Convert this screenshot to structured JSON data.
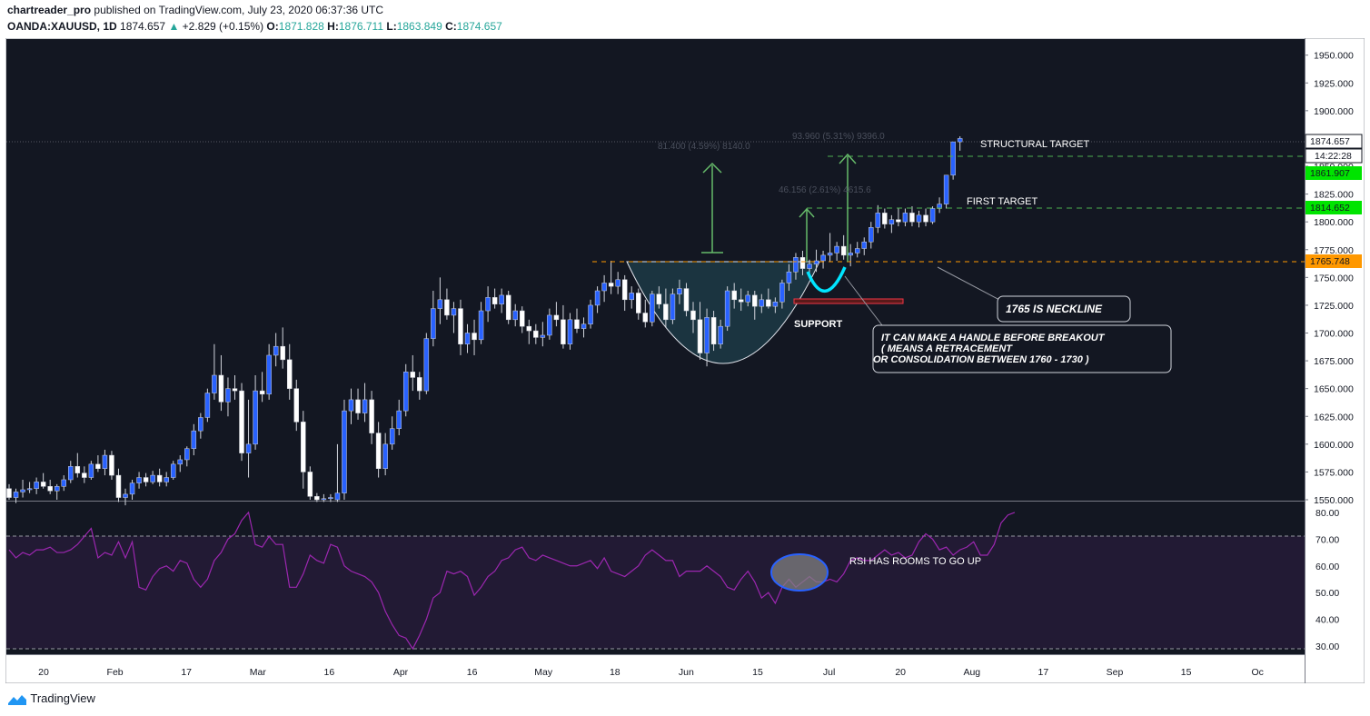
{
  "header": {
    "author": "chartreader_pro",
    "published_text": "published on TradingView.com, July 23, 2020 06:37:36 UTC",
    "symbol": "OANDA:XAUUSD, 1D",
    "last": "1874.657",
    "change_arrow": "▲",
    "change": "+2.829 (+0.15%)",
    "o_label": "O:",
    "o_value": "1871.828",
    "h_label": "H:",
    "h_value": "1876.711",
    "l_label": "L:",
    "l_value": "1863.849",
    "c_label": "C:",
    "c_value": "1874.657"
  },
  "footer": {
    "brand": "TradingView"
  },
  "colors": {
    "background": "#131722",
    "rsi_panel": "#221a34",
    "up_candle": "#2962ff",
    "down_candle": "#ffffff",
    "rsi_line": "#9c27b0",
    "target_line": "#4caf50",
    "neckline": "#ff9800",
    "axis_text": "#131722"
  },
  "chart_data": [
    {
      "type": "candlestick",
      "title": "",
      "y_axis": {
        "ticks": [
          "1950.000",
          "1925.000",
          "1900.000",
          "1875.000",
          "1850.000",
          "1825.000",
          "1800.000",
          "1775.000",
          "1750.000",
          "1725.000",
          "1700.000",
          "1675.000",
          "1650.000",
          "1625.000",
          "1600.000",
          "1575.000",
          "1550.000"
        ],
        "range": [
          1550,
          1962
        ]
      },
      "x_axis": {
        "ticks": [
          "20",
          "Feb",
          "17",
          "Mar",
          "16",
          "Apr",
          "16",
          "May",
          "18",
          "Jun",
          "15",
          "Jul",
          "20",
          "Aug",
          "17",
          "Sep",
          "15",
          "Oc"
        ]
      },
      "price_labels": {
        "last": "1874.657",
        "countdown": "14:22:28",
        "structural": "1861.907",
        "first": "1814.652",
        "neckline": "1765.748"
      },
      "measures": [
        "81.400 (4.59%) 8140.0",
        "93.960 (5.31%) 9396.0",
        "46.156 (2.61%) 4615.6"
      ],
      "annotations": {
        "structural_target": "STRUCTURAL TARGET",
        "first_target": "FIRST TARGET",
        "support": "SUPPORT",
        "neckline_note": "1765 IS NECKLINE",
        "handle_note_1": "IT CAN MAKE A HANDLE BEFORE BREAKOUT",
        "handle_note_2": "( MEANS A RETRACEMENT",
        "handle_note_3": "OR CONSOLIDATION BETWEEN 1760 - 1730 )"
      },
      "levels": {
        "structural": 1861.907,
        "first": 1814.652,
        "neckline": 1765.748,
        "support": 1728
      },
      "series": [
        {
          "o": 1560,
          "h": 1564,
          "l": 1550,
          "c": 1552
        },
        {
          "o": 1552,
          "h": 1560,
          "l": 1547,
          "c": 1557
        },
        {
          "o": 1557,
          "h": 1568,
          "l": 1552,
          "c": 1559
        },
        {
          "o": 1559,
          "h": 1566,
          "l": 1556,
          "c": 1560
        },
        {
          "o": 1560,
          "h": 1570,
          "l": 1555,
          "c": 1566
        },
        {
          "o": 1566,
          "h": 1574,
          "l": 1560,
          "c": 1562
        },
        {
          "o": 1562,
          "h": 1568,
          "l": 1555,
          "c": 1558
        },
        {
          "o": 1558,
          "h": 1564,
          "l": 1550,
          "c": 1562
        },
        {
          "o": 1562,
          "h": 1572,
          "l": 1558,
          "c": 1568
        },
        {
          "o": 1568,
          "h": 1585,
          "l": 1565,
          "c": 1580
        },
        {
          "o": 1580,
          "h": 1592,
          "l": 1570,
          "c": 1574
        },
        {
          "o": 1574,
          "h": 1580,
          "l": 1565,
          "c": 1570
        },
        {
          "o": 1570,
          "h": 1585,
          "l": 1568,
          "c": 1582
        },
        {
          "o": 1582,
          "h": 1590,
          "l": 1575,
          "c": 1578
        },
        {
          "o": 1578,
          "h": 1595,
          "l": 1572,
          "c": 1590
        },
        {
          "o": 1590,
          "h": 1594,
          "l": 1568,
          "c": 1572
        },
        {
          "o": 1572,
          "h": 1578,
          "l": 1548,
          "c": 1552
        },
        {
          "o": 1552,
          "h": 1560,
          "l": 1545,
          "c": 1555
        },
        {
          "o": 1555,
          "h": 1568,
          "l": 1550,
          "c": 1565
        },
        {
          "o": 1565,
          "h": 1575,
          "l": 1560,
          "c": 1570
        },
        {
          "o": 1570,
          "h": 1574,
          "l": 1562,
          "c": 1566
        },
        {
          "o": 1566,
          "h": 1576,
          "l": 1564,
          "c": 1572
        },
        {
          "o": 1572,
          "h": 1578,
          "l": 1562,
          "c": 1566
        },
        {
          "o": 1566,
          "h": 1575,
          "l": 1562,
          "c": 1570
        },
        {
          "o": 1570,
          "h": 1585,
          "l": 1568,
          "c": 1582
        },
        {
          "o": 1582,
          "h": 1590,
          "l": 1575,
          "c": 1586
        },
        {
          "o": 1586,
          "h": 1598,
          "l": 1580,
          "c": 1596
        },
        {
          "o": 1596,
          "h": 1618,
          "l": 1590,
          "c": 1612
        },
        {
          "o": 1612,
          "h": 1628,
          "l": 1605,
          "c": 1624
        },
        {
          "o": 1624,
          "h": 1650,
          "l": 1620,
          "c": 1646
        },
        {
          "o": 1646,
          "h": 1690,
          "l": 1640,
          "c": 1662
        },
        {
          "o": 1662,
          "h": 1680,
          "l": 1630,
          "c": 1638
        },
        {
          "o": 1638,
          "h": 1660,
          "l": 1625,
          "c": 1650
        },
        {
          "o": 1650,
          "h": 1662,
          "l": 1640,
          "c": 1648
        },
        {
          "o": 1648,
          "h": 1655,
          "l": 1585,
          "c": 1592
        },
        {
          "o": 1592,
          "h": 1640,
          "l": 1570,
          "c": 1600
        },
        {
          "o": 1600,
          "h": 1662,
          "l": 1595,
          "c": 1648
        },
        {
          "o": 1648,
          "h": 1665,
          "l": 1638,
          "c": 1645
        },
        {
          "o": 1645,
          "h": 1690,
          "l": 1640,
          "c": 1680
        },
        {
          "o": 1680,
          "h": 1700,
          "l": 1670,
          "c": 1688
        },
        {
          "o": 1688,
          "h": 1705,
          "l": 1668,
          "c": 1676
        },
        {
          "o": 1676,
          "h": 1690,
          "l": 1640,
          "c": 1650
        },
        {
          "o": 1650,
          "h": 1658,
          "l": 1612,
          "c": 1620
        },
        {
          "o": 1620,
          "h": 1630,
          "l": 1560,
          "c": 1575
        },
        {
          "o": 1575,
          "h": 1580,
          "l": 1550,
          "c": 1553
        },
        {
          "o": 1553,
          "h": 1556,
          "l": 1548,
          "c": 1550
        },
        {
          "o": 1550,
          "h": 1555,
          "l": 1548,
          "c": 1551
        },
        {
          "o": 1551,
          "h": 1555,
          "l": 1548,
          "c": 1552
        },
        {
          "o": 1550,
          "h": 1600,
          "l": 1548,
          "c": 1556
        },
        {
          "o": 1556,
          "h": 1640,
          "l": 1550,
          "c": 1630
        },
        {
          "o": 1630,
          "h": 1650,
          "l": 1618,
          "c": 1640
        },
        {
          "o": 1640,
          "h": 1650,
          "l": 1622,
          "c": 1628
        },
        {
          "o": 1628,
          "h": 1655,
          "l": 1620,
          "c": 1640
        },
        {
          "o": 1640,
          "h": 1648,
          "l": 1600,
          "c": 1610
        },
        {
          "o": 1610,
          "h": 1620,
          "l": 1570,
          "c": 1578
        },
        {
          "o": 1578,
          "h": 1610,
          "l": 1572,
          "c": 1600
        },
        {
          "o": 1600,
          "h": 1625,
          "l": 1595,
          "c": 1614
        },
        {
          "o": 1614,
          "h": 1640,
          "l": 1608,
          "c": 1630
        },
        {
          "o": 1630,
          "h": 1672,
          "l": 1625,
          "c": 1665
        },
        {
          "o": 1665,
          "h": 1680,
          "l": 1648,
          "c": 1660
        },
        {
          "o": 1660,
          "h": 1665,
          "l": 1640,
          "c": 1648
        },
        {
          "o": 1648,
          "h": 1700,
          "l": 1645,
          "c": 1695
        },
        {
          "o": 1695,
          "h": 1738,
          "l": 1688,
          "c": 1722
        },
        {
          "o": 1722,
          "h": 1750,
          "l": 1708,
          "c": 1730
        },
        {
          "o": 1730,
          "h": 1740,
          "l": 1712,
          "c": 1716
        },
        {
          "o": 1716,
          "h": 1728,
          "l": 1700,
          "c": 1722
        },
        {
          "o": 1722,
          "h": 1730,
          "l": 1680,
          "c": 1690
        },
        {
          "o": 1690,
          "h": 1708,
          "l": 1682,
          "c": 1700
        },
        {
          "o": 1700,
          "h": 1712,
          "l": 1680,
          "c": 1694
        },
        {
          "o": 1694,
          "h": 1728,
          "l": 1690,
          "c": 1720
        },
        {
          "o": 1720,
          "h": 1742,
          "l": 1710,
          "c": 1732
        },
        {
          "o": 1732,
          "h": 1740,
          "l": 1722,
          "c": 1726
        },
        {
          "o": 1726,
          "h": 1740,
          "l": 1718,
          "c": 1734
        },
        {
          "o": 1734,
          "h": 1738,
          "l": 1708,
          "c": 1712
        },
        {
          "o": 1712,
          "h": 1726,
          "l": 1706,
          "c": 1720
        },
        {
          "o": 1720,
          "h": 1724,
          "l": 1700,
          "c": 1706
        },
        {
          "o": 1706,
          "h": 1712,
          "l": 1690,
          "c": 1702
        },
        {
          "o": 1702,
          "h": 1708,
          "l": 1690,
          "c": 1696
        },
        {
          "o": 1696,
          "h": 1710,
          "l": 1688,
          "c": 1698
        },
        {
          "o": 1698,
          "h": 1722,
          "l": 1694,
          "c": 1716
        },
        {
          "o": 1716,
          "h": 1728,
          "l": 1706,
          "c": 1712
        },
        {
          "o": 1712,
          "h": 1725,
          "l": 1686,
          "c": 1690
        },
        {
          "o": 1690,
          "h": 1718,
          "l": 1685,
          "c": 1712
        },
        {
          "o": 1712,
          "h": 1722,
          "l": 1700,
          "c": 1704
        },
        {
          "o": 1704,
          "h": 1714,
          "l": 1696,
          "c": 1708
        },
        {
          "o": 1708,
          "h": 1730,
          "l": 1704,
          "c": 1725
        },
        {
          "o": 1725,
          "h": 1742,
          "l": 1718,
          "c": 1738
        },
        {
          "o": 1738,
          "h": 1752,
          "l": 1728,
          "c": 1745
        },
        {
          "o": 1745,
          "h": 1765,
          "l": 1735,
          "c": 1742
        },
        {
          "o": 1742,
          "h": 1755,
          "l": 1735,
          "c": 1748
        },
        {
          "o": 1748,
          "h": 1752,
          "l": 1720,
          "c": 1730
        },
        {
          "o": 1730,
          "h": 1742,
          "l": 1722,
          "c": 1736
        },
        {
          "o": 1736,
          "h": 1740,
          "l": 1712,
          "c": 1718
        },
        {
          "o": 1718,
          "h": 1730,
          "l": 1705,
          "c": 1710
        },
        {
          "o": 1710,
          "h": 1738,
          "l": 1706,
          "c": 1735
        },
        {
          "o": 1735,
          "h": 1742,
          "l": 1722,
          "c": 1726
        },
        {
          "o": 1726,
          "h": 1740,
          "l": 1705,
          "c": 1712
        },
        {
          "o": 1712,
          "h": 1740,
          "l": 1708,
          "c": 1735
        },
        {
          "o": 1735,
          "h": 1748,
          "l": 1726,
          "c": 1740
        },
        {
          "o": 1740,
          "h": 1745,
          "l": 1715,
          "c": 1720
        },
        {
          "o": 1720,
          "h": 1728,
          "l": 1700,
          "c": 1712
        },
        {
          "o": 1712,
          "h": 1728,
          "l": 1676,
          "c": 1682
        },
        {
          "o": 1682,
          "h": 1722,
          "l": 1670,
          "c": 1714
        },
        {
          "o": 1714,
          "h": 1720,
          "l": 1684,
          "c": 1690
        },
        {
          "o": 1690,
          "h": 1712,
          "l": 1686,
          "c": 1706
        },
        {
          "o": 1706,
          "h": 1742,
          "l": 1702,
          "c": 1738
        },
        {
          "o": 1738,
          "h": 1745,
          "l": 1722,
          "c": 1730
        },
        {
          "o": 1730,
          "h": 1740,
          "l": 1720,
          "c": 1728
        },
        {
          "o": 1728,
          "h": 1738,
          "l": 1724,
          "c": 1734
        },
        {
          "o": 1734,
          "h": 1738,
          "l": 1712,
          "c": 1724
        },
        {
          "o": 1724,
          "h": 1735,
          "l": 1718,
          "c": 1730
        },
        {
          "o": 1730,
          "h": 1740,
          "l": 1722,
          "c": 1724
        },
        {
          "o": 1724,
          "h": 1732,
          "l": 1718,
          "c": 1728
        },
        {
          "o": 1728,
          "h": 1748,
          "l": 1722,
          "c": 1745
        },
        {
          "o": 1745,
          "h": 1762,
          "l": 1738,
          "c": 1755
        },
        {
          "o": 1755,
          "h": 1772,
          "l": 1748,
          "c": 1768
        },
        {
          "o": 1768,
          "h": 1774,
          "l": 1752,
          "c": 1758
        },
        {
          "o": 1758,
          "h": 1766,
          "l": 1752,
          "c": 1762
        },
        {
          "o": 1762,
          "h": 1775,
          "l": 1755,
          "c": 1765
        },
        {
          "o": 1765,
          "h": 1774,
          "l": 1758,
          "c": 1770
        },
        {
          "o": 1770,
          "h": 1790,
          "l": 1764,
          "c": 1772
        },
        {
          "o": 1772,
          "h": 1782,
          "l": 1765,
          "c": 1778
        },
        {
          "o": 1778,
          "h": 1788,
          "l": 1766,
          "c": 1770
        },
        {
          "o": 1770,
          "h": 1780,
          "l": 1760,
          "c": 1772
        },
        {
          "o": 1772,
          "h": 1782,
          "l": 1768,
          "c": 1776
        },
        {
          "o": 1776,
          "h": 1786,
          "l": 1770,
          "c": 1782
        },
        {
          "o": 1782,
          "h": 1800,
          "l": 1776,
          "c": 1795
        },
        {
          "o": 1795,
          "h": 1815,
          "l": 1790,
          "c": 1808
        },
        {
          "o": 1808,
          "h": 1812,
          "l": 1794,
          "c": 1798
        },
        {
          "o": 1798,
          "h": 1806,
          "l": 1790,
          "c": 1802
        },
        {
          "o": 1802,
          "h": 1812,
          "l": 1796,
          "c": 1800
        },
        {
          "o": 1800,
          "h": 1812,
          "l": 1796,
          "c": 1808
        },
        {
          "o": 1808,
          "h": 1814,
          "l": 1796,
          "c": 1800
        },
        {
          "o": 1800,
          "h": 1810,
          "l": 1795,
          "c": 1806
        },
        {
          "o": 1806,
          "h": 1812,
          "l": 1796,
          "c": 1800
        },
        {
          "o": 1800,
          "h": 1814,
          "l": 1798,
          "c": 1812
        },
        {
          "o": 1812,
          "h": 1822,
          "l": 1808,
          "c": 1816
        },
        {
          "o": 1816,
          "h": 1842,
          "l": 1812,
          "c": 1842
        },
        {
          "o": 1842,
          "h": 1872,
          "l": 1838,
          "c": 1872
        },
        {
          "o": 1872,
          "h": 1877,
          "l": 1864,
          "c": 1875
        }
      ]
    },
    {
      "type": "line",
      "title": "",
      "y_axis": {
        "ticks": [
          "80.00",
          "70.00",
          "60.00",
          "50.00",
          "40.00",
          "30.00"
        ],
        "range": [
          29,
          82
        ],
        "bands": [
          30,
          70
        ]
      },
      "annotations": {
        "rsi_note": "RSI HAS ROOMS TO GO UP"
      },
      "values": [
        66,
        63,
        65,
        64,
        66,
        66,
        67,
        65,
        65,
        66,
        68,
        71,
        74,
        63,
        65,
        64,
        69,
        63,
        69,
        52,
        51,
        56,
        59,
        60,
        58,
        62,
        61,
        55,
        52,
        55,
        62,
        65,
        70,
        72,
        77,
        80,
        68,
        67,
        71,
        68,
        68,
        52,
        52,
        57,
        64,
        62,
        61,
        68,
        67,
        60,
        58,
        57,
        56,
        54,
        50,
        43,
        38,
        34,
        33,
        29,
        34,
        40,
        48,
        50,
        58,
        57,
        58,
        56,
        49,
        52,
        56,
        58,
        62,
        63,
        66,
        67,
        63,
        62,
        64,
        63,
        62,
        61,
        60,
        60,
        61,
        62,
        59,
        63,
        58,
        57,
        56,
        58,
        60,
        64,
        66,
        64,
        62,
        62,
        56,
        58,
        58,
        58,
        60,
        58,
        56,
        52,
        51,
        55,
        58,
        54,
        48,
        50,
        46,
        52,
        55,
        52,
        54,
        56,
        54,
        54,
        55,
        54,
        57,
        62,
        63,
        62,
        62,
        64,
        66,
        64,
        65,
        63,
        64,
        69,
        72,
        70,
        66,
        67,
        64,
        66,
        67,
        69,
        64,
        64,
        68,
        76,
        79,
        80
      ]
    }
  ]
}
